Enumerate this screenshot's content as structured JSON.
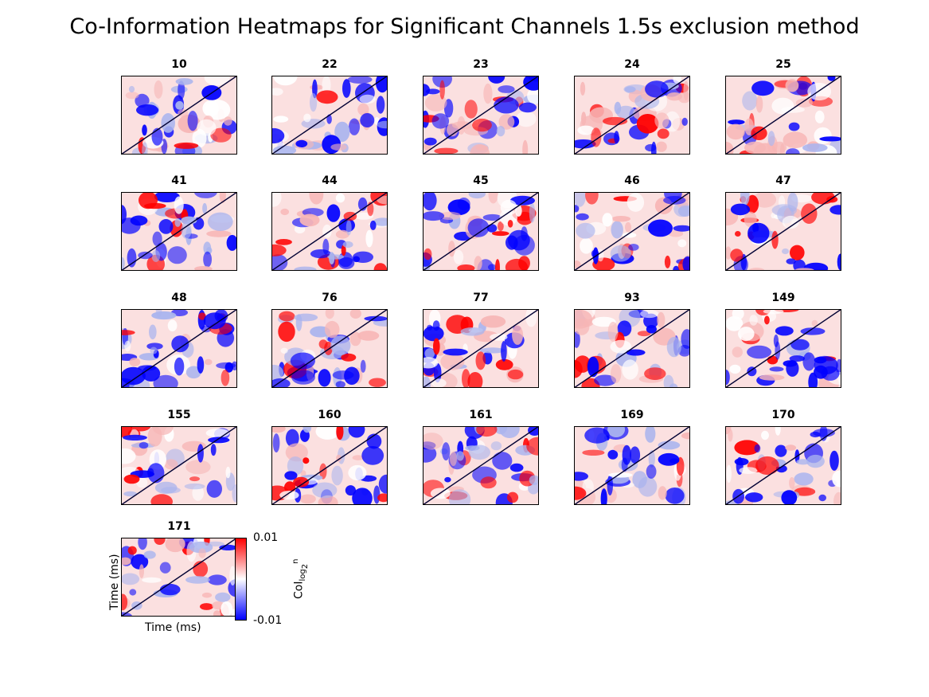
{
  "figure": {
    "title": "Co-Information Heatmaps for Significant Channels 1.5s exclusion method"
  },
  "chart_data": {
    "type": "heatmap",
    "title": "Co-Information Heatmaps for Significant Channels 1.5s exclusion method",
    "panels": [
      {
        "label": "10"
      },
      {
        "label": "22"
      },
      {
        "label": "23"
      },
      {
        "label": "24"
      },
      {
        "label": "25"
      },
      {
        "label": "41"
      },
      {
        "label": "44"
      },
      {
        "label": "45"
      },
      {
        "label": "46"
      },
      {
        "label": "47"
      },
      {
        "label": "48"
      },
      {
        "label": "76"
      },
      {
        "label": "77"
      },
      {
        "label": "93"
      },
      {
        "label": "149"
      },
      {
        "label": "155"
      },
      {
        "label": "160"
      },
      {
        "label": "161"
      },
      {
        "label": "169"
      },
      {
        "label": "170"
      },
      {
        "label": "171"
      }
    ],
    "xlabel": "Time (ms)",
    "ylabel": "Time (ms)",
    "colorbar": {
      "label_base": "CoI",
      "label_sub": "log",
      "label_subsub": "2",
      "label_sup": "n",
      "max_label": "0.01",
      "min_label": "-0.01",
      "range": [
        -0.01,
        0.01
      ],
      "colormap": [
        "#0000ff",
        "#ffffff",
        "#ff0000"
      ]
    }
  },
  "colors": {
    "positive": "#ff0000",
    "positive_light": "#f7b6b6",
    "negative": "#0000ff",
    "negative_light": "#aab4ee",
    "background": "#fbe0e0"
  }
}
